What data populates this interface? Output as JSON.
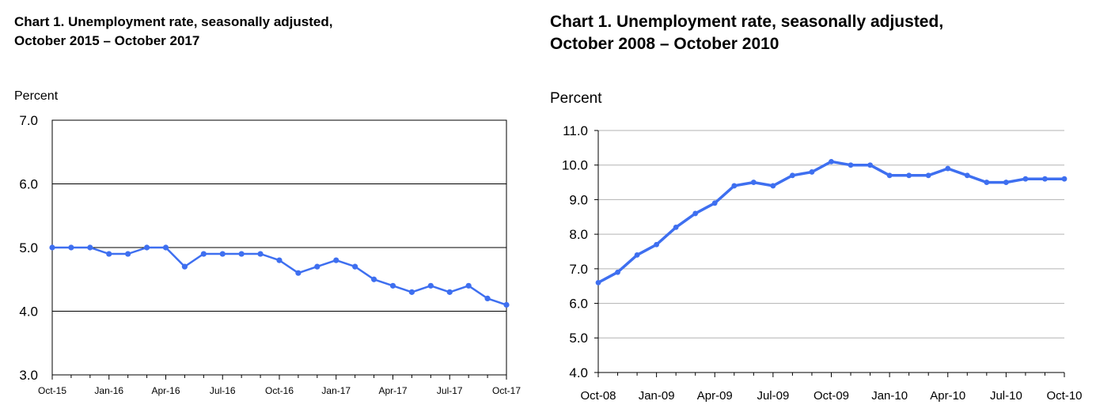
{
  "chart_data": [
    {
      "type": "line",
      "title": "Chart 1. Unemployment rate, seasonally adjusted,",
      "subtitle": "October 2015 – October 2017",
      "ylabel": "Percent",
      "xlabel": "",
      "ylim": [
        3.0,
        7.0
      ],
      "y_ticks": [
        "3.0",
        "4.0",
        "5.0",
        "6.0",
        "7.0"
      ],
      "x_tick_labels": [
        "Oct-15",
        "Jan-16",
        "Apr-16",
        "Jul-16",
        "Oct-16",
        "Jan-17",
        "Apr-17",
        "Jul-17",
        "Oct-17"
      ],
      "x": [
        "Oct-15",
        "Nov-15",
        "Dec-15",
        "Jan-16",
        "Feb-16",
        "Mar-16",
        "Apr-16",
        "May-16",
        "Jun-16",
        "Jul-16",
        "Aug-16",
        "Sep-16",
        "Oct-16",
        "Nov-16",
        "Dec-16",
        "Jan-17",
        "Feb-17",
        "Mar-17",
        "Apr-17",
        "May-17",
        "Jun-17",
        "Jul-17",
        "Aug-17",
        "Sep-17",
        "Oct-17"
      ],
      "series": [
        {
          "values": [
            5.0,
            5.0,
            5.0,
            4.9,
            4.9,
            5.0,
            5.0,
            4.7,
            4.9,
            4.9,
            4.9,
            4.9,
            4.8,
            4.6,
            4.7,
            4.8,
            4.7,
            4.5,
            4.4,
            4.3,
            4.4,
            4.3,
            4.4,
            4.2,
            4.1
          ]
        }
      ],
      "grid": "horizontal",
      "line_color": "#3e6ff0"
    },
    {
      "type": "line",
      "title": "Chart 1. Unemployment rate, seasonally adjusted,",
      "subtitle": "October 2008 – October 2010",
      "ylabel": "Percent",
      "xlabel": "",
      "ylim": [
        4.0,
        11.0
      ],
      "y_ticks": [
        "4.0",
        "5.0",
        "6.0",
        "7.0",
        "8.0",
        "9.0",
        "10.0",
        "11.0"
      ],
      "x_tick_labels": [
        "Oct-08",
        "Jan-09",
        "Apr-09",
        "Jul-09",
        "Oct-09",
        "Jan-10",
        "Apr-10",
        "Jul-10",
        "Oct-10"
      ],
      "x": [
        "Oct-08",
        "Nov-08",
        "Dec-08",
        "Jan-09",
        "Feb-09",
        "Mar-09",
        "Apr-09",
        "May-09",
        "Jun-09",
        "Jul-09",
        "Aug-09",
        "Sep-09",
        "Oct-09",
        "Nov-09",
        "Dec-09",
        "Jan-10",
        "Feb-10",
        "Mar-10",
        "Apr-10",
        "May-10",
        "Jun-10",
        "Jul-10",
        "Aug-10",
        "Sep-10",
        "Oct-10"
      ],
      "series": [
        {
          "values": [
            6.6,
            6.9,
            7.4,
            7.7,
            8.2,
            8.6,
            8.9,
            9.4,
            9.5,
            9.4,
            9.7,
            9.8,
            10.1,
            10.0,
            10.0,
            9.7,
            9.7,
            9.7,
            9.9,
            9.7,
            9.5,
            9.5,
            9.6,
            9.6,
            9.6
          ]
        }
      ],
      "grid": "horizontal",
      "line_color": "#3e6ff0"
    }
  ]
}
